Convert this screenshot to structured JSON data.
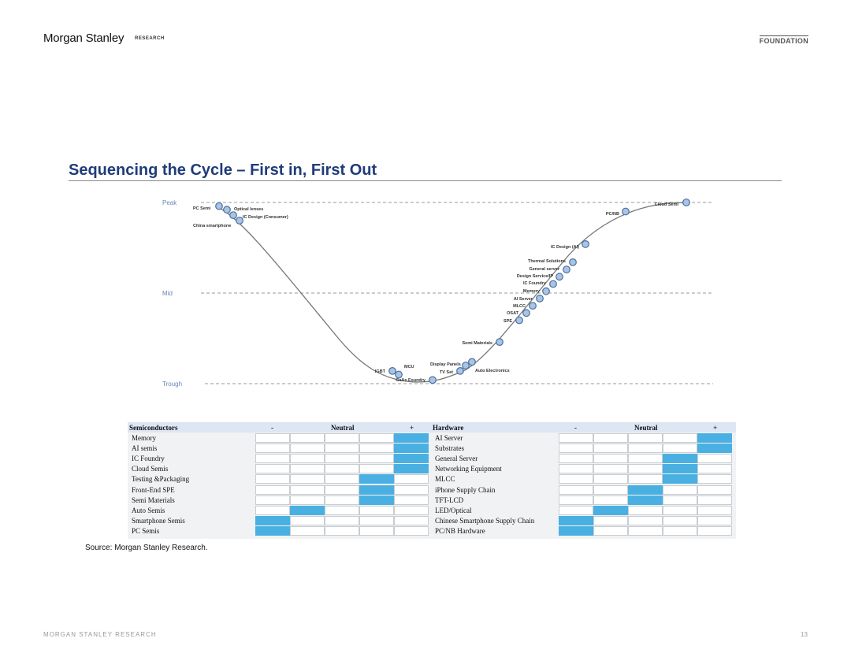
{
  "header": {
    "brand": "Morgan Stanley",
    "research_tag": "RESEARCH",
    "foundation_label": "FOUNDATION"
  },
  "page_title": "Sequencing the Cycle – First in, First Out",
  "chart_data": {
    "type": "line",
    "title": "",
    "levels": [
      "Trough",
      "Mid",
      "Peak"
    ],
    "grid": "dashed horizontal lines at Peak, Mid, Trough",
    "points": [
      {
        "label": "PC Semi",
        "level": 0.98
      },
      {
        "label": "Optical lenses",
        "level": 0.96
      },
      {
        "label": "IC Design (Consumer)",
        "level": 0.93
      },
      {
        "label": "China smartphone",
        "level": 0.9
      },
      {
        "label": "IGBT",
        "level": 0.07
      },
      {
        "label": "MCU",
        "level": 0.05
      },
      {
        "label": "GaAs Foundry",
        "level": 0.02
      },
      {
        "label": "TV Set",
        "level": 0.07
      },
      {
        "label": "Display Panels",
        "level": 0.1
      },
      {
        "label": "Auto Electronics",
        "level": 0.12
      },
      {
        "label": "Semi Materials",
        "level": 0.23
      },
      {
        "label": "SPE",
        "level": 0.35
      },
      {
        "label": "OSAT",
        "level": 0.39
      },
      {
        "label": "MLCC",
        "level": 0.43
      },
      {
        "label": "AI Server",
        "level": 0.47
      },
      {
        "label": "Memory",
        "level": 0.51
      },
      {
        "label": "IC Foundry",
        "level": 0.55
      },
      {
        "label": "Design Service/IP",
        "level": 0.59
      },
      {
        "label": "General server",
        "level": 0.63
      },
      {
        "label": "Thermal Solutions",
        "level": 0.67
      },
      {
        "label": "IC Design (AI)",
        "level": 0.77
      },
      {
        "label": "PC/NB",
        "level": 0.95
      },
      {
        "label": "Cloud Semi",
        "level": 1.0
      }
    ]
  },
  "matrices": [
    {
      "title": "Semiconductors",
      "minus": "-",
      "neutral": "Neutral",
      "plus": "+",
      "rows": [
        {
          "label": "Memory",
          "pos": 4
        },
        {
          "label": "AI semis",
          "pos": 4
        },
        {
          "label": "IC Foundry",
          "pos": 4
        },
        {
          "label": "Cloud Semis",
          "pos": 4
        },
        {
          "label": "Testing &Packaging",
          "pos": 3
        },
        {
          "label": "Front-End SPE",
          "pos": 3
        },
        {
          "label": "Semi Materials",
          "pos": 3
        },
        {
          "label": "Auto Semis",
          "pos": 1
        },
        {
          "label": "Smartphone Semis",
          "pos": 0
        },
        {
          "label": "PC Semis",
          "pos": 0
        }
      ]
    },
    {
      "title": "Hardware",
      "minus": "-",
      "neutral": "Neutral",
      "plus": "+",
      "rows": [
        {
          "label": "AI Server",
          "pos": 4
        },
        {
          "label": "Substrates",
          "pos": 4
        },
        {
          "label": "General Server",
          "pos": 3
        },
        {
          "label": "Networking Equipment",
          "pos": 3
        },
        {
          "label": "MLCC",
          "pos": 3
        },
        {
          "label": "iPhone Supply Chain",
          "pos": 2
        },
        {
          "label": "TFT-LCD",
          "pos": 2
        },
        {
          "label": "LED/Optical",
          "pos": 1
        },
        {
          "label": "Chinese Smartphone Supply Chain",
          "pos": 0
        },
        {
          "label": "PC/NB Hardware",
          "pos": 0
        }
      ]
    }
  ],
  "source": "Source: Morgan Stanley Research.",
  "footer": {
    "left": "MORGAN STANLEY RESEARCH",
    "page_number": "13"
  },
  "colors": {
    "title": "#1f3c7a",
    "highlight": "#4ab0e2",
    "marker_fill": "#a9c4e4",
    "marker_stroke": "#4a6f9e",
    "curve": "#777777"
  }
}
